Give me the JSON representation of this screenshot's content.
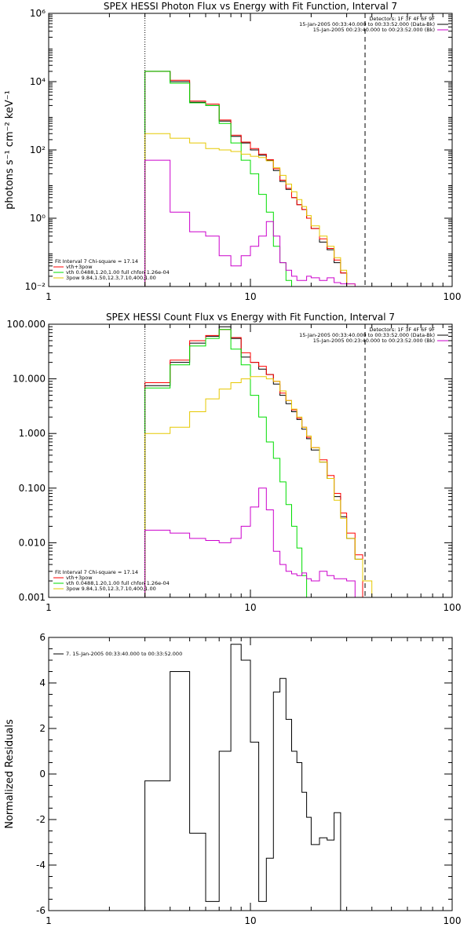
{
  "chart_data": [
    {
      "type": "line",
      "title": "SPEX HESSI Photon Flux vs Energy with Fit Function, Interval 7",
      "ylabel": "photons s⁻¹ cm⁻² keV⁻¹",
      "xlabel": "",
      "xscale": "log",
      "yscale": "log",
      "xlim": [
        1,
        100
      ],
      "ylim": [
        0.01,
        1000000
      ],
      "x_ticks": [
        {
          "value": 1,
          "label": "1"
        },
        {
          "value": 10,
          "label": "10"
        },
        {
          "value": 100,
          "label": "100"
        }
      ],
      "y_ticks": [
        {
          "value": 0.01,
          "label": "10⁻²"
        },
        {
          "value": 1,
          "label": "10⁰"
        },
        {
          "value": 100,
          "label": "10²"
        },
        {
          "value": 10000,
          "label": "10⁴"
        },
        {
          "value": 1000000,
          "label": "10⁶"
        }
      ],
      "vlines": [
        {
          "x": 3,
          "style": "dotted"
        },
        {
          "x": 37,
          "style": "dashed"
        }
      ],
      "header_lines": [
        "Detectors: 1F 3F 4F 6F 9F",
        "15-Jan-2005 00:33:40.000 to 00:33:52.000 (Data-Bk)",
        "15-Jan-2005 00:23:40.000 to 00:23:52.000 (Bk)"
      ],
      "header_colors": [
        "#000000",
        "#000000",
        "#cc00cc"
      ],
      "legend_lines": [
        "Fit Interval 7   Chi-square = 17.14",
        "vth+3pow",
        "vth 0.0488,1.20,1.00  full chfon 1.26e-04",
        "3pow 9.84,1.50,12.3,7.10,400,1.00"
      ],
      "legend_colors": [
        "#000000",
        "#ff0000",
        "#00dd00",
        "#e6c800"
      ],
      "edges": [
        3,
        4,
        5,
        6,
        7,
        8,
        9,
        10,
        11,
        12,
        13,
        14,
        15,
        16,
        17,
        18,
        19,
        20,
        22,
        24,
        26,
        28,
        30,
        33,
        36,
        40,
        44
      ],
      "series": [
        {
          "color": "#000000",
          "values": [
            20000,
            10000,
            2500,
            2000,
            700,
            250,
            160,
            100,
            70,
            50,
            25,
            12,
            7,
            4,
            2.5,
            1.8,
            1.0,
            0.5,
            0.2,
            0.12,
            0.05,
            0.025
          ]
        },
        {
          "color": "#ff0000",
          "values": [
            20000,
            11000,
            2700,
            2200,
            750,
            270,
            170,
            110,
            75,
            52,
            28,
            13,
            7.5,
            4,
            2.5,
            1.8,
            1.0,
            0.5,
            0.25,
            0.13,
            0.06,
            0.025
          ]
        },
        {
          "color": "#00dd00",
          "values": [
            20000,
            9000,
            2400,
            2000,
            600,
            160,
            50,
            20,
            5,
            1.5,
            0.15,
            0.05,
            0.015,
            0.005
          ]
        },
        {
          "color": "#e6c800",
          "values": [
            300,
            220,
            160,
            110,
            100,
            90,
            75,
            65,
            60,
            48,
            30,
            18,
            10,
            6,
            3.5,
            2.2,
            1.2,
            0.6,
            0.3,
            0.15,
            0.07,
            0.03,
            0.012,
            0.005
          ]
        },
        {
          "color": "#cc00cc",
          "values": [
            50,
            1.5,
            0.4,
            0.3,
            0.08,
            0.04,
            0.08,
            0.15,
            0.3,
            0.8,
            0.3,
            0.05,
            0.03,
            0.02,
            0.015,
            0.015,
            0.02,
            0.018,
            0.015,
            0.018,
            0.013,
            0.012,
            0.012
          ]
        }
      ]
    },
    {
      "type": "line",
      "title": "SPEX HESSI Count Flux vs Energy with Fit Function, Interval 7",
      "ylabel": "",
      "xlabel": "",
      "xscale": "log",
      "yscale": "log",
      "xlim": [
        1,
        100
      ],
      "ylim": [
        0.001,
        100
      ],
      "x_ticks": [
        {
          "value": 1,
          "label": "1"
        },
        {
          "value": 10,
          "label": "10"
        },
        {
          "value": 100,
          "label": "100"
        }
      ],
      "y_ticks": [
        {
          "value": 0.001,
          "label": "0.001"
        },
        {
          "value": 0.01,
          "label": "0.010"
        },
        {
          "value": 0.1,
          "label": "0.100"
        },
        {
          "value": 1,
          "label": "1.000"
        },
        {
          "value": 10,
          "label": "10.000"
        },
        {
          "value": 100,
          "label": "100.000"
        }
      ],
      "vlines": [
        {
          "x": 3,
          "style": "dotted"
        },
        {
          "x": 37,
          "style": "dashed"
        }
      ],
      "header_lines": [
        "Detectors: 1F 3F 4F 6F 9F",
        "15-Jan-2005 00:33:40.000 to 00:33:52.000 (Data-Bk)",
        "15-Jan-2005 00:23:40.000 to 00:23:52.000 (Bk)"
      ],
      "header_colors": [
        "#000000",
        "#000000",
        "#cc00cc"
      ],
      "legend_lines": [
        "Fit Interval 7   Chi-square = 17.14",
        "vth+3pow",
        "vth 0.0488,1.20,1.00  full chfon 1.26e-04",
        "3pow 9.84,1.50,12.3,7.10,400,1.00"
      ],
      "legend_colors": [
        "#000000",
        "#ff0000",
        "#00dd00",
        "#e6c800"
      ],
      "edges": [
        3,
        4,
        5,
        6,
        7,
        8,
        9,
        10,
        11,
        12,
        13,
        14,
        15,
        16,
        17,
        18,
        19,
        20,
        22,
        24,
        26,
        28,
        30,
        33,
        36,
        40,
        44
      ],
      "series": [
        {
          "color": "#000000",
          "values": [
            7.5,
            20,
            45,
            60,
            90,
            55,
            25,
            20,
            15,
            12,
            8,
            5,
            3.5,
            2.5,
            1.8,
            1.2,
            0.8,
            0.5,
            0.3,
            0.15,
            0.07,
            0.03,
            0.012,
            0.005
          ]
        },
        {
          "color": "#ff0000",
          "values": [
            8.5,
            22,
            50,
            62,
            80,
            57,
            30,
            20,
            17,
            12,
            9,
            5.5,
            4,
            2.7,
            1.9,
            1.3,
            0.85,
            0.55,
            0.33,
            0.17,
            0.08,
            0.035,
            0.015,
            0.006
          ]
        },
        {
          "color": "#00dd00",
          "values": [
            6.8,
            18,
            40,
            55,
            80,
            35,
            18,
            5,
            2,
            0.7,
            0.35,
            0.13,
            0.05,
            0.02,
            0.008,
            0.0025
          ]
        },
        {
          "color": "#e6c800",
          "values": [
            1.0,
            1.3,
            2.5,
            4.3,
            6.5,
            8.5,
            10,
            11,
            11,
            10,
            9,
            6,
            4,
            2.8,
            2,
            1.3,
            0.9,
            0.55,
            0.3,
            0.15,
            0.06,
            0.028,
            0.012,
            0.005,
            0.002,
            0.001
          ]
        },
        {
          "color": "#cc00cc",
          "values": [
            0.017,
            0.015,
            0.012,
            0.011,
            0.01,
            0.012,
            0.02,
            0.045,
            0.1,
            0.04,
            0.007,
            0.004,
            0.003,
            0.0027,
            0.0025,
            0.0028,
            0.0022,
            0.002,
            0.003,
            0.0025,
            0.0022,
            0.0022,
            0.002,
            0.001
          ]
        }
      ]
    },
    {
      "type": "line",
      "title": "",
      "ylabel": "Normalized Residuals",
      "xlabel": "",
      "xscale": "log",
      "yscale": "linear",
      "xlim": [
        1,
        100
      ],
      "ylim": [
        -6,
        6
      ],
      "x_ticks": [
        {
          "value": 1,
          "label": "1"
        },
        {
          "value": 10,
          "label": "10"
        },
        {
          "value": 100,
          "label": "100"
        }
      ],
      "y_ticks": [
        {
          "value": -6,
          "label": "-6"
        },
        {
          "value": -4,
          "label": "-4"
        },
        {
          "value": -2,
          "label": "-2"
        },
        {
          "value": 0,
          "label": "0"
        },
        {
          "value": 2,
          "label": "2"
        },
        {
          "value": 4,
          "label": "4"
        },
        {
          "value": 6,
          "label": "6"
        }
      ],
      "vlines": [],
      "header_lines": [],
      "header_colors": [],
      "legend_lines": [
        "7. 15-Jan-2005 00:33:40.000 to 00:33:52.000"
      ],
      "legend_colors": [
        "#000000"
      ],
      "edges": [
        3,
        4,
        5,
        6,
        7,
        8,
        9,
        10,
        11,
        12,
        13,
        14,
        15,
        16,
        17,
        18,
        19,
        20,
        22,
        24,
        26,
        28,
        30,
        33,
        36,
        37
      ],
      "series": [
        {
          "color": "#000000",
          "values": [
            -0.3,
            4.5,
            -2.6,
            -5.6,
            1.0,
            5.7,
            5.0,
            1.4,
            -5.6,
            -3.7,
            3.6,
            4.2,
            2.4,
            1.0,
            0.5,
            -0.8,
            -1.9,
            -3.1,
            -2.8,
            -2.9,
            -1.7
          ]
        }
      ]
    }
  ]
}
